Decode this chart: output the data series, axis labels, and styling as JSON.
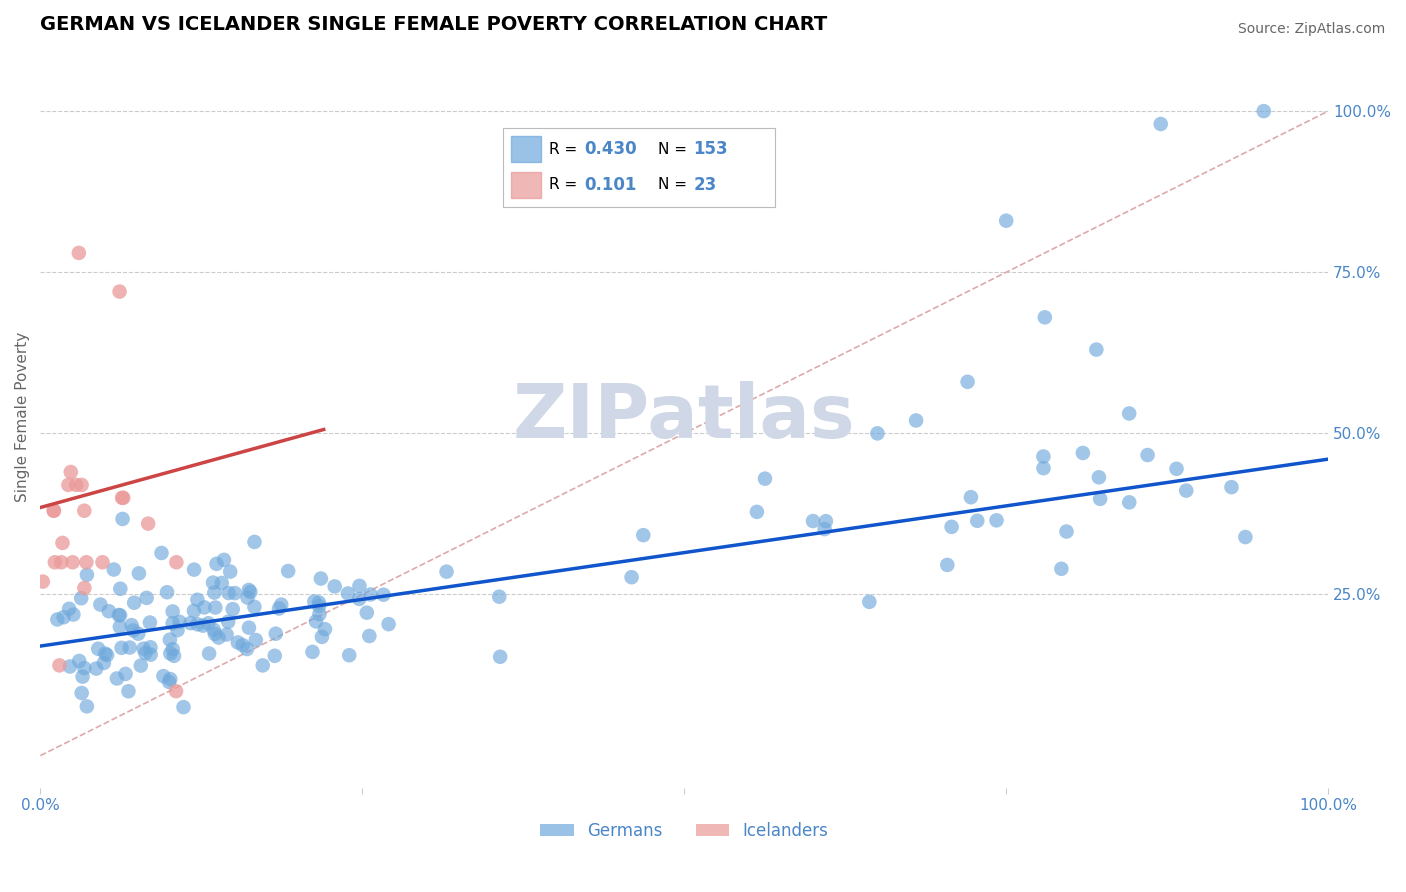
{
  "title": "GERMAN VS ICELANDER SINGLE FEMALE POVERTY CORRELATION CHART",
  "source": "Source: ZipAtlas.com",
  "xlabel": "",
  "ylabel": "Single Female Poverty",
  "xlim": [
    0.0,
    1.0
  ],
  "ylim": [
    -0.05,
    1.1
  ],
  "german_color": "#6fa8dc",
  "icelander_color": "#ea9999",
  "german_line_color": "#1155cc",
  "icelander_line_color": "#cc4444",
  "diagonal_color": "#ddaaaa",
  "grid_color": "#cccccc",
  "background_color": "#ffffff",
  "watermark": "ZIPatlas",
  "watermark_color": "#d0d8e8",
  "legend_R_german": "0.430",
  "legend_N_german": "153",
  "legend_R_icelander": "0.101",
  "legend_N_icelander": "23",
  "title_fontsize": 14,
  "source_fontsize": 10,
  "tick_label_color": "#4a86c8",
  "ylabel_color": "#666666"
}
